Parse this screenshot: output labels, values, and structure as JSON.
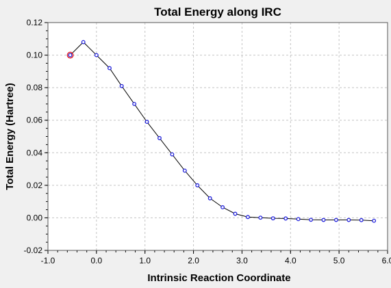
{
  "chart_data": {
    "type": "line",
    "title": "Total Energy along IRC",
    "xlabel": "Intrinsic Reaction Coordinate",
    "ylabel": "Total Energy (Hartree)",
    "xlim": [
      -1.0,
      6.0
    ],
    "ylim": [
      -0.02,
      0.12
    ],
    "xticks": [
      "-1.0",
      "0.0",
      "1.0",
      "2.0",
      "3.0",
      "4.0",
      "5.0",
      "6.0"
    ],
    "yticks": [
      "-0.02",
      "0.00",
      "0.02",
      "0.04",
      "0.06",
      "0.08",
      "0.10",
      "0.12"
    ],
    "grid": true,
    "legend": "none",
    "series": [
      {
        "x": [
          -0.54,
          -0.27,
          0.0,
          0.27,
          0.52,
          0.78,
          1.04,
          1.3,
          1.56,
          1.82,
          2.08,
          2.34,
          2.6,
          2.86,
          3.12,
          3.38,
          3.64,
          3.9,
          4.16,
          4.42,
          4.68,
          4.94,
          5.2,
          5.46,
          5.72
        ],
        "y": [
          0.1,
          0.108,
          0.1,
          0.092,
          0.081,
          0.07,
          0.059,
          0.049,
          0.039,
          0.029,
          0.02,
          0.012,
          0.0065,
          0.0025,
          0.0005,
          0.0001,
          -0.0003,
          -0.0004,
          -0.0008,
          -0.0012,
          -0.0013,
          -0.0013,
          -0.0013,
          -0.0014,
          -0.0018
        ]
      }
    ],
    "highlighted_point": {
      "x": -0.54,
      "y": 0.1
    },
    "colors": {
      "line": "#000000",
      "marker": "#2222dd",
      "highlight": "#e0202a",
      "grid": "#c4c4c4",
      "plot_background": "#ffffff",
      "page_background": "#f0f0f0"
    }
  }
}
